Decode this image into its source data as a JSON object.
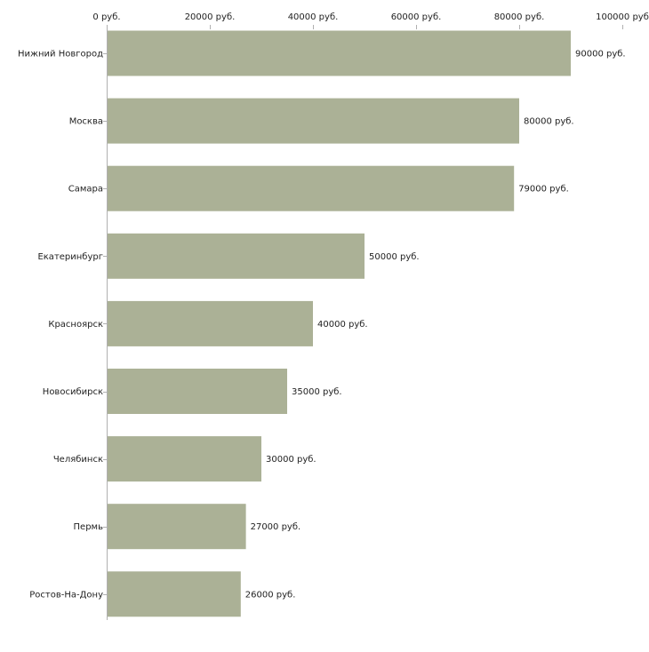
{
  "chart_data": {
    "type": "bar",
    "orientation": "horizontal",
    "title": "",
    "xlabel": "",
    "ylabel": "",
    "categories": [
      "Нижний Новгород",
      "Москва",
      "Самара",
      "Екатеринбург",
      "Красноярск",
      "Новосибирск",
      "Челябинск",
      "Пермь",
      "Ростов-На-Дону"
    ],
    "values": [
      90000,
      80000,
      79000,
      50000,
      40000,
      35000,
      30000,
      27000,
      26000
    ],
    "value_labels": [
      "90000 руб.",
      "80000 руб.",
      "79000 руб.",
      "50000 руб.",
      "40000 руб.",
      "35000 руб.",
      "30000 руб.",
      "27000 руб.",
      "26000 руб."
    ],
    "xlim": [
      0,
      100000
    ],
    "ticks": [
      0,
      20000,
      40000,
      60000,
      80000,
      100000
    ],
    "tick_labels": [
      "0 руб.",
      "20000 руб.",
      "40000 руб.",
      "60000 руб.",
      "80000 руб.",
      "100000 руб"
    ],
    "axis_position": "top",
    "grid": false,
    "legend": "none",
    "bar_color": "#abb196",
    "axis_color": "#b0b0b0",
    "text_color": "#222222"
  }
}
